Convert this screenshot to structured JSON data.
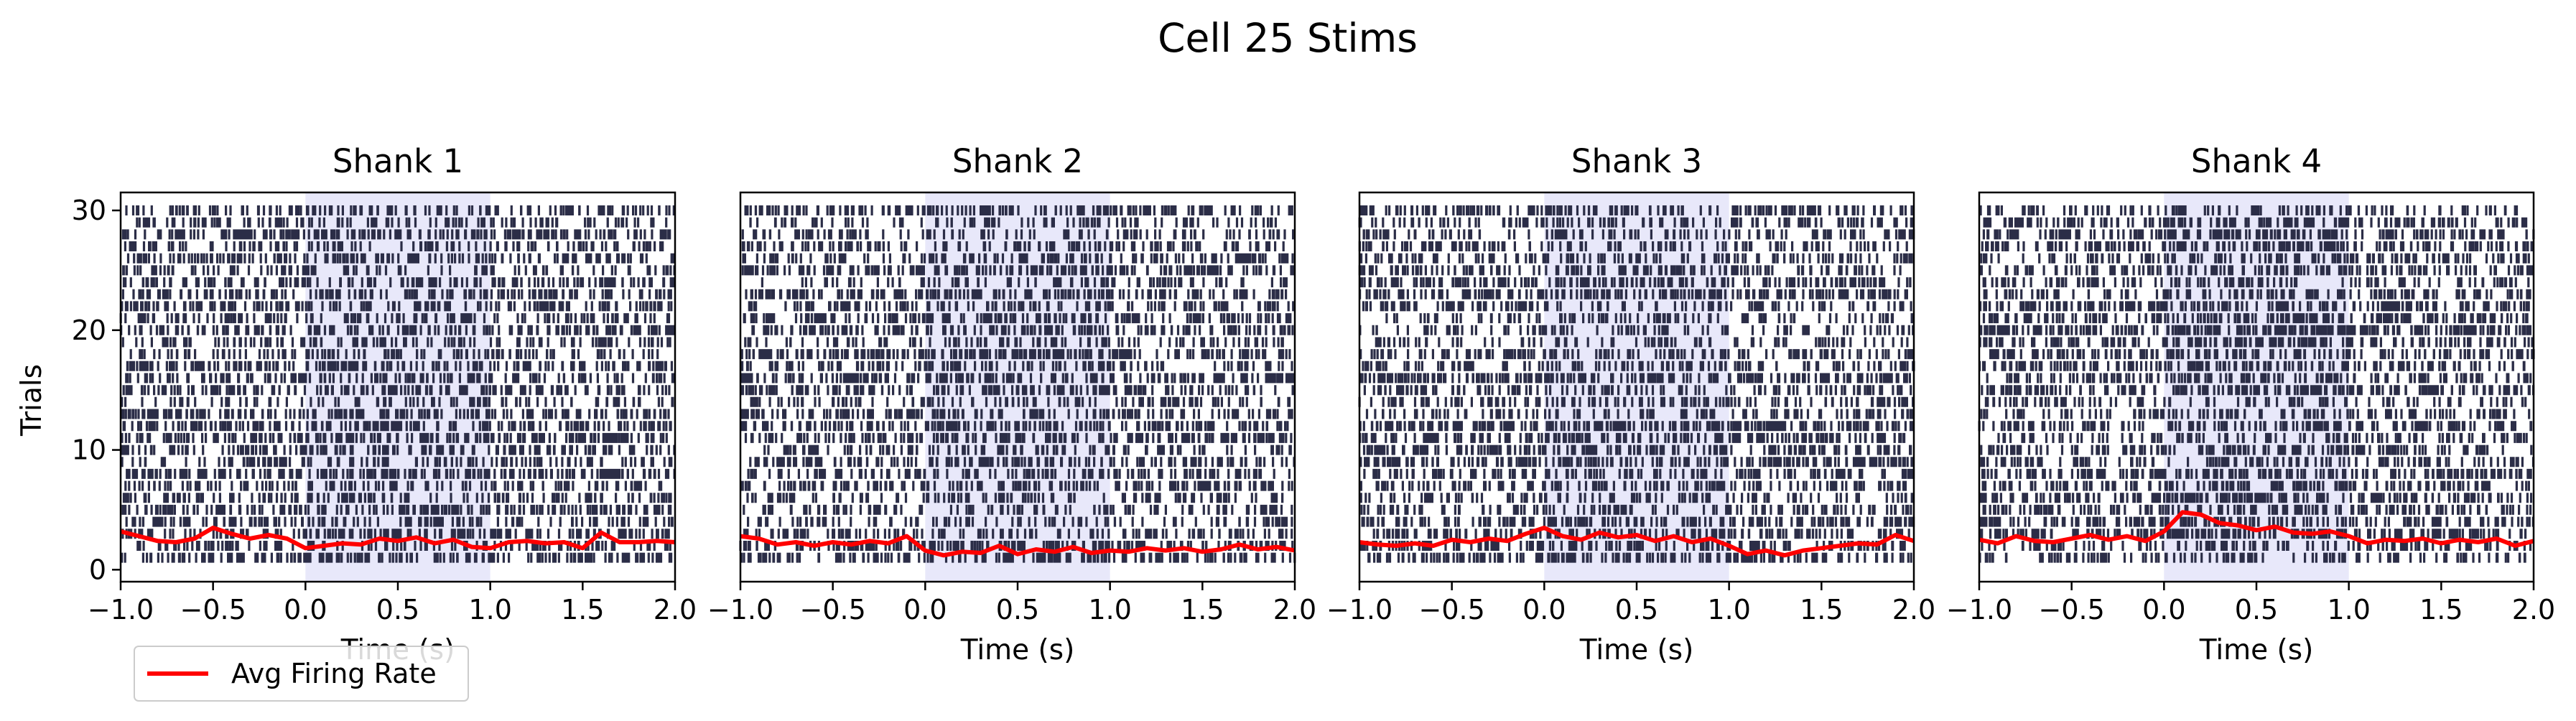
{
  "chart_data": {
    "type": "raster",
    "title": "Cell 25 Stims",
    "ylabel": "Trials",
    "xlabel": "Time (s)",
    "xlim": [
      -1.0,
      2.0
    ],
    "ylim": [
      -1,
      31.5
    ],
    "x_ticks": [
      "−1.0",
      "−0.5",
      "0.0",
      "0.5",
      "1.0",
      "1.5",
      "2.0"
    ],
    "y_ticks": [
      "0",
      "10",
      "20",
      "30"
    ],
    "stim_window": [
      0.0,
      1.0
    ],
    "colors": {
      "spike": "#2b2d47",
      "rate_line": "#ff0000",
      "stim": "#e6e6fa"
    },
    "legend": {
      "label": "Avg Firing Rate",
      "placement": "lower-left"
    },
    "panels": [
      {
        "title": "Shank 1",
        "rate_x": [
          -1.0,
          -0.9,
          -0.8,
          -0.7,
          -0.6,
          -0.5,
          -0.4,
          -0.3,
          -0.2,
          -0.1,
          0.0,
          0.1,
          0.2,
          0.3,
          0.4,
          0.5,
          0.6,
          0.7,
          0.8,
          0.9,
          1.0,
          1.1,
          1.2,
          1.3,
          1.4,
          1.5,
          1.6,
          1.7,
          1.8,
          1.9,
          2.0
        ],
        "rate_y": [
          3.2,
          2.8,
          2.4,
          2.3,
          2.6,
          3.5,
          3.0,
          2.6,
          2.9,
          2.6,
          1.8,
          2.0,
          2.2,
          2.1,
          2.6,
          2.4,
          2.7,
          2.2,
          2.5,
          1.9,
          1.8,
          2.3,
          2.4,
          2.2,
          2.3,
          1.8,
          3.1,
          2.3,
          2.3,
          2.4,
          2.3
        ]
      },
      {
        "title": "Shank 2",
        "rate_x": [
          -1.0,
          -0.9,
          -0.8,
          -0.7,
          -0.6,
          -0.5,
          -0.4,
          -0.3,
          -0.2,
          -0.1,
          0.0,
          0.1,
          0.2,
          0.3,
          0.4,
          0.5,
          0.6,
          0.7,
          0.8,
          0.9,
          1.0,
          1.1,
          1.2,
          1.3,
          1.4,
          1.5,
          1.6,
          1.7,
          1.8,
          1.9,
          2.0
        ],
        "rate_y": [
          2.8,
          2.6,
          2.1,
          2.3,
          2.0,
          2.3,
          2.1,
          2.4,
          2.2,
          2.8,
          1.6,
          1.2,
          1.5,
          1.4,
          2.0,
          1.3,
          1.7,
          1.5,
          1.9,
          1.4,
          1.6,
          1.5,
          1.8,
          1.6,
          1.8,
          1.5,
          1.7,
          2.1,
          1.7,
          1.9,
          1.6
        ]
      },
      {
        "title": "Shank 3",
        "rate_x": [
          -1.0,
          -0.9,
          -0.8,
          -0.7,
          -0.6,
          -0.5,
          -0.4,
          -0.3,
          -0.2,
          -0.1,
          0.0,
          0.1,
          0.2,
          0.3,
          0.4,
          0.5,
          0.6,
          0.7,
          0.8,
          0.9,
          1.0,
          1.1,
          1.2,
          1.3,
          1.4,
          1.5,
          1.6,
          1.7,
          1.8,
          1.9,
          2.0
        ],
        "rate_y": [
          2.3,
          2.1,
          2.0,
          2.2,
          2.0,
          2.5,
          2.3,
          2.6,
          2.4,
          3.0,
          3.5,
          2.8,
          2.5,
          3.1,
          2.7,
          2.9,
          2.4,
          2.8,
          2.3,
          2.6,
          2.0,
          1.3,
          1.6,
          1.2,
          1.6,
          1.8,
          2.0,
          2.2,
          2.1,
          2.9,
          2.4
        ]
      },
      {
        "title": "Shank 4",
        "rate_x": [
          -1.0,
          -0.9,
          -0.8,
          -0.7,
          -0.6,
          -0.5,
          -0.4,
          -0.3,
          -0.2,
          -0.1,
          0.0,
          0.1,
          0.2,
          0.3,
          0.4,
          0.5,
          0.6,
          0.7,
          0.8,
          0.9,
          1.0,
          1.1,
          1.2,
          1.3,
          1.4,
          1.5,
          1.6,
          1.7,
          1.8,
          1.9,
          2.0
        ],
        "rate_y": [
          2.5,
          2.2,
          2.8,
          2.4,
          2.3,
          2.6,
          2.9,
          2.5,
          2.8,
          2.4,
          3.2,
          4.8,
          4.6,
          3.9,
          3.7,
          3.3,
          3.6,
          3.1,
          3.0,
          3.2,
          2.8,
          2.2,
          2.5,
          2.4,
          2.6,
          2.2,
          2.5,
          2.3,
          2.6,
          2.0,
          2.4
        ]
      }
    ]
  }
}
